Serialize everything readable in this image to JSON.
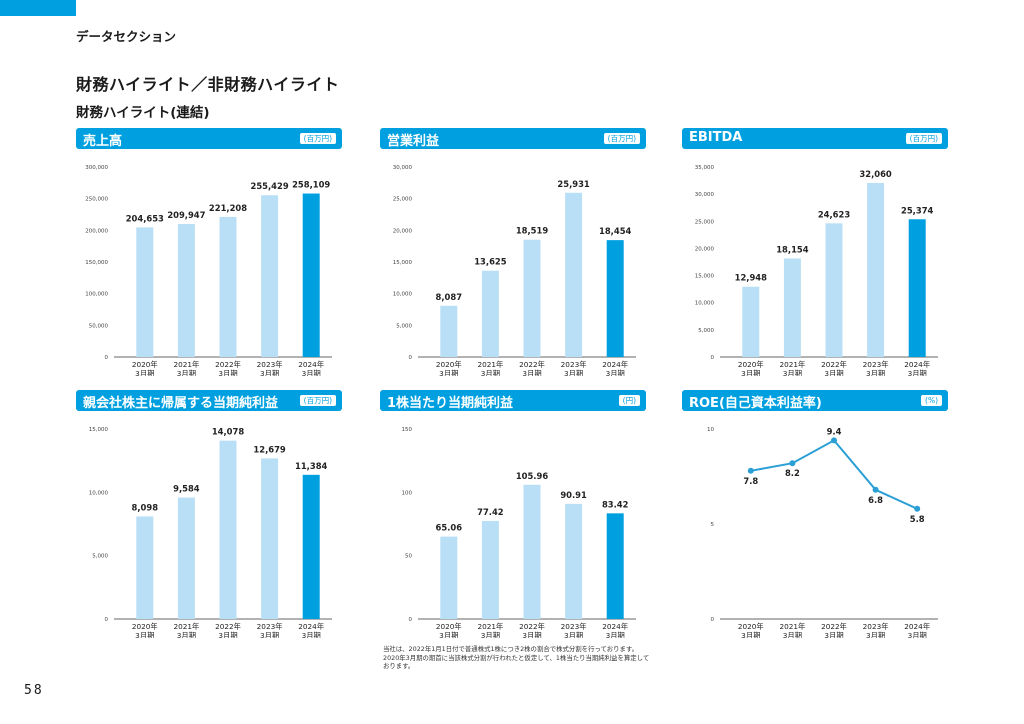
{
  "header": {
    "section_label": "データセクション",
    "page_title": "財務ハイライト／非財務ハイライト",
    "subtitle": "財務ハイライト(連結)"
  },
  "page_number": "58",
  "footnote": "当社は、2022年1月1日付で普通株式1株につき2株の割合で株式分割を行っております。2020年3月期の期首に当該株式分割が行われたと仮定して、1株当たり当期純利益を算定しております。",
  "colors": {
    "accent": "#00a0e0",
    "bar_light": "#b8dff5",
    "bar_highlight": "#00a0e0",
    "line": "#2a9fd6"
  },
  "chart_data": [
    {
      "type": "bar",
      "title": "売上高",
      "unit": "(百万円)",
      "categories": [
        [
          "2020年",
          "3月期"
        ],
        [
          "2021年",
          "3月期"
        ],
        [
          "2022年",
          "3月期"
        ],
        [
          "2023年",
          "3月期"
        ],
        [
          "2024年",
          "3月期"
        ]
      ],
      "values": [
        204653,
        209947,
        221208,
        255429,
        258109
      ],
      "value_labels": [
        "204,653",
        "209,947",
        "221,208",
        "255,429",
        "258,109"
      ],
      "ylim": [
        0,
        300000
      ],
      "yticks": [
        0,
        50000,
        100000,
        150000,
        200000,
        250000,
        300000
      ],
      "ytick_labels": [
        "0",
        "50,000",
        "100,000",
        "150,000",
        "200,000",
        "250,000",
        "300,000"
      ],
      "highlight_index": 4
    },
    {
      "type": "bar",
      "title": "営業利益",
      "unit": "(百万円)",
      "categories": [
        [
          "2020年",
          "3月期"
        ],
        [
          "2021年",
          "3月期"
        ],
        [
          "2022年",
          "3月期"
        ],
        [
          "2023年",
          "3月期"
        ],
        [
          "2024年",
          "3月期"
        ]
      ],
      "values": [
        8087,
        13625,
        18519,
        25931,
        18454
      ],
      "value_labels": [
        "8,087",
        "13,625",
        "18,519",
        "25,931",
        "18,454"
      ],
      "ylim": [
        0,
        30000
      ],
      "yticks": [
        0,
        5000,
        10000,
        15000,
        20000,
        25000,
        30000
      ],
      "ytick_labels": [
        "0",
        "5,000",
        "10,000",
        "15,000",
        "20,000",
        "25,000",
        "30,000"
      ],
      "highlight_index": 4
    },
    {
      "type": "bar",
      "title": "EBITDA",
      "unit": "(百万円)",
      "categories": [
        [
          "2020年",
          "3月期"
        ],
        [
          "2021年",
          "3月期"
        ],
        [
          "2022年",
          "3月期"
        ],
        [
          "2023年",
          "3月期"
        ],
        [
          "2024年",
          "3月期"
        ]
      ],
      "values": [
        12948,
        18154,
        24623,
        32060,
        25374
      ],
      "value_labels": [
        "12,948",
        "18,154",
        "24,623",
        "32,060",
        "25,374"
      ],
      "ylim": [
        0,
        35000
      ],
      "yticks": [
        0,
        5000,
        10000,
        15000,
        20000,
        25000,
        30000,
        35000
      ],
      "ytick_labels": [
        "0",
        "5,000",
        "10,000",
        "15,000",
        "20,000",
        "25,000",
        "30,000",
        "35,000"
      ],
      "highlight_index": 4
    },
    {
      "type": "bar",
      "title": "親会社株主に帰属する当期純利益",
      "unit": "(百万円)",
      "categories": [
        [
          "2020年",
          "3月期"
        ],
        [
          "2021年",
          "3月期"
        ],
        [
          "2022年",
          "3月期"
        ],
        [
          "2023年",
          "3月期"
        ],
        [
          "2024年",
          "3月期"
        ]
      ],
      "values": [
        8098,
        9584,
        14078,
        12679,
        11384
      ],
      "value_labels": [
        "8,098",
        "9,584",
        "14,078",
        "12,679",
        "11,384"
      ],
      "ylim": [
        0,
        15000
      ],
      "yticks": [
        0,
        5000,
        10000,
        15000
      ],
      "ytick_labels": [
        "0",
        "5,000",
        "10,000",
        "15,000"
      ],
      "highlight_index": 4
    },
    {
      "type": "bar",
      "title": "1株当たり当期純利益",
      "unit": "(円)",
      "categories": [
        [
          "2020年",
          "3月期"
        ],
        [
          "2021年",
          "3月期"
        ],
        [
          "2022年",
          "3月期"
        ],
        [
          "2023年",
          "3月期"
        ],
        [
          "2024年",
          "3月期"
        ]
      ],
      "values": [
        65.06,
        77.42,
        105.96,
        90.91,
        83.42
      ],
      "value_labels": [
        "65.06",
        "77.42",
        "105.96",
        "90.91",
        "83.42"
      ],
      "ylim": [
        0,
        150
      ],
      "yticks": [
        0,
        50,
        100,
        150
      ],
      "ytick_labels": [
        "0",
        "50",
        "100",
        "150"
      ],
      "highlight_index": 4
    },
    {
      "type": "line",
      "title": "ROE(自己資本利益率)",
      "unit": "(%)",
      "categories": [
        [
          "2020年",
          "3月期"
        ],
        [
          "2021年",
          "3月期"
        ],
        [
          "2022年",
          "3月期"
        ],
        [
          "2023年",
          "3月期"
        ],
        [
          "2024年",
          "3月期"
        ]
      ],
      "values": [
        7.8,
        8.2,
        9.4,
        6.8,
        5.8
      ],
      "value_labels": [
        "7.8",
        "8.2",
        "9.4",
        "6.8",
        "5.8"
      ],
      "ylim": [
        0,
        10
      ],
      "yticks": [
        0,
        5,
        10
      ],
      "ytick_labels": [
        "0",
        "5",
        "10"
      ]
    }
  ]
}
